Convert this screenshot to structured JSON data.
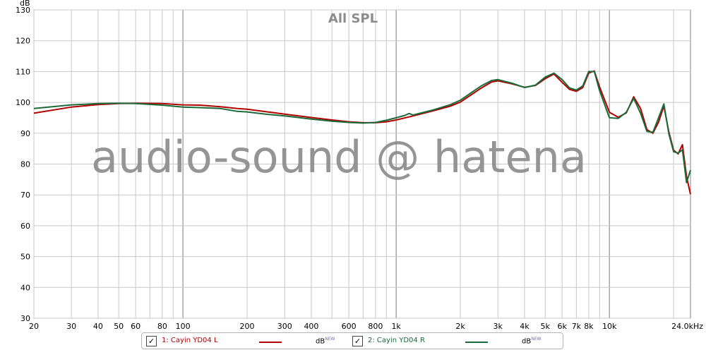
{
  "chart_data": {
    "type": "line",
    "title": "All SPL",
    "ylabel": "dB",
    "xlabel": "",
    "watermark": "audio-sound @ hatena",
    "x_scale": "log",
    "xlim": [
      20,
      24000
    ],
    "ylim": [
      30,
      130
    ],
    "y_ticks": [
      30,
      40,
      50,
      60,
      70,
      80,
      90,
      100,
      110,
      120,
      130
    ],
    "x_ticks": [
      {
        "v": 20,
        "label": "20"
      },
      {
        "v": 30,
        "label": "30"
      },
      {
        "v": 40,
        "label": "40"
      },
      {
        "v": 50,
        "label": "50"
      },
      {
        "v": 60,
        "label": "60"
      },
      {
        "v": 80,
        "label": "80"
      },
      {
        "v": 100,
        "label": "100"
      },
      {
        "v": 200,
        "label": "200"
      },
      {
        "v": 300,
        "label": "300"
      },
      {
        "v": 400,
        "label": "400"
      },
      {
        "v": 600,
        "label": "600"
      },
      {
        "v": 800,
        "label": "800"
      },
      {
        "v": 1000,
        "label": "1k"
      },
      {
        "v": 2000,
        "label": "2k"
      },
      {
        "v": 3000,
        "label": "3k"
      },
      {
        "v": 4000,
        "label": "4k"
      },
      {
        "v": 5000,
        "label": "5k"
      },
      {
        "v": 6000,
        "label": "6k"
      },
      {
        "v": 7000,
        "label": "7k"
      },
      {
        "v": 8000,
        "label": "8k"
      },
      {
        "v": 10000,
        "label": "10k"
      },
      {
        "v": 24000,
        "label": "24.0kHz"
      }
    ],
    "grid": true,
    "series": [
      {
        "name": "1: Cayin YD04 L",
        "unit_label": "dB",
        "unit_sup": "NEW",
        "color": "#b00000",
        "x": [
          20,
          30,
          40,
          50,
          60,
          80,
          100,
          120,
          150,
          180,
          200,
          250,
          300,
          400,
          500,
          600,
          700,
          800,
          900,
          1000,
          1200,
          1500,
          1800,
          2000,
          2500,
          2800,
          3000,
          3500,
          4000,
          4500,
          5000,
          5500,
          6000,
          6500,
          7000,
          7500,
          8000,
          8500,
          9000,
          10000,
          11000,
          12000,
          13000,
          14000,
          15000,
          16000,
          17000,
          18000,
          19000,
          20000,
          21000,
          22000,
          23000,
          24000
        ],
        "y": [
          96.5,
          98.5,
          99.3,
          99.6,
          99.7,
          99.6,
          99.2,
          99.1,
          98.6,
          98.0,
          97.8,
          96.9,
          96.2,
          95.1,
          94.3,
          93.7,
          93.4,
          93.4,
          93.7,
          94.3,
          95.6,
          97.3,
          98.8,
          100.1,
          104.6,
          106.6,
          107.0,
          106.0,
          104.9,
          105.5,
          107.7,
          109.2,
          106.5,
          104.2,
          103.6,
          104.8,
          109.5,
          110.2,
          105.0,
          96.8,
          95.2,
          96.6,
          101.8,
          98.0,
          91.2,
          90.0,
          93.6,
          98.8,
          90.4,
          84.5,
          83.3,
          86.3,
          76.0,
          70.2
        ]
      },
      {
        "name": "2: Cayin YD04 R",
        "unit_label": "dB",
        "unit_sup": "NEW",
        "color": "#1a6b3a",
        "x": [
          20,
          30,
          40,
          50,
          60,
          80,
          100,
          120,
          150,
          180,
          200,
          250,
          300,
          400,
          500,
          600,
          700,
          800,
          900,
          1000,
          1100,
          1150,
          1200,
          1500,
          1800,
          2000,
          2500,
          2800,
          3000,
          3500,
          4000,
          4500,
          5000,
          5500,
          6000,
          6500,
          7000,
          7500,
          8000,
          8500,
          9000,
          10000,
          11000,
          12000,
          13000,
          14000,
          15000,
          16000,
          17000,
          18000,
          19000,
          20000,
          21000,
          22000,
          23000,
          24000
        ],
        "y": [
          98.0,
          99.2,
          99.6,
          99.7,
          99.6,
          99.1,
          98.5,
          98.3,
          98.0,
          97.1,
          96.9,
          96.1,
          95.6,
          94.6,
          93.9,
          93.5,
          93.3,
          93.5,
          94.2,
          95.0,
          95.8,
          96.4,
          95.9,
          97.6,
          99.3,
          100.7,
          105.3,
          107.1,
          107.4,
          106.2,
          104.8,
          105.6,
          108.2,
          109.5,
          107.4,
          104.7,
          104.0,
          105.3,
          110.0,
          110.0,
          103.8,
          95.0,
          94.8,
          96.8,
          101.3,
          96.5,
          90.6,
          90.3,
          95.0,
          99.5,
          89.8,
          84.0,
          83.6,
          84.6,
          74.0,
          78.0
        ]
      }
    ]
  },
  "legend": {
    "checkmark": "✓",
    "items": [
      {
        "label": "1: Cayin YD04 L",
        "color": "#b00000",
        "unit": "dB",
        "sup": "NEW"
      },
      {
        "label": "2: Cayin YD04 R",
        "color": "#1a6b3a",
        "unit": "dB",
        "sup": "NEW"
      }
    ]
  }
}
